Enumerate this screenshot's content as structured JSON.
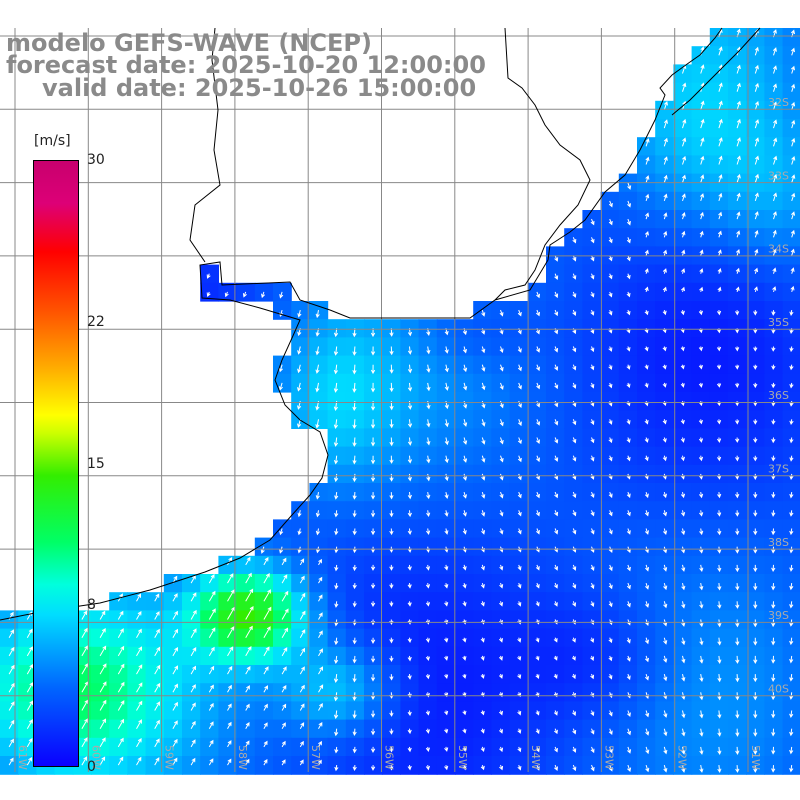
{
  "title": {
    "line1": "modelo GEFS-WAVE (NCEP)",
    "line2": "forecast date: 2025-10-20 12:00:00",
    "line3": "valid date: 2025-10-26 15:00:00"
  },
  "colorbar": {
    "unit": "[m/s]",
    "ticks": [
      {
        "label": "30",
        "value": 30
      },
      {
        "label": "22",
        "value": 22
      },
      {
        "label": "15",
        "value": 15
      },
      {
        "label": "8",
        "value": 8
      },
      {
        "label": "0",
        "value": 0
      }
    ],
    "colors": [
      "#0a00ff",
      "#00ddff",
      "#33ee00",
      "#ffff00",
      "#ff0000",
      "#c8006e"
    ]
  },
  "map": {
    "lat_labels": [
      "32S",
      "33S",
      "34S",
      "35S",
      "36S",
      "37S",
      "38S",
      "39S",
      "40S"
    ],
    "lon_labels": [
      "61W",
      "60W",
      "59W",
      "58W",
      "57W",
      "56W",
      "55W",
      "54W",
      "53W",
      "52W",
      "51W"
    ],
    "colors": {
      "land": "#ffffff",
      "coast": "#000000",
      "grid": "#888888",
      "arrow": "#ffffff"
    }
  }
}
